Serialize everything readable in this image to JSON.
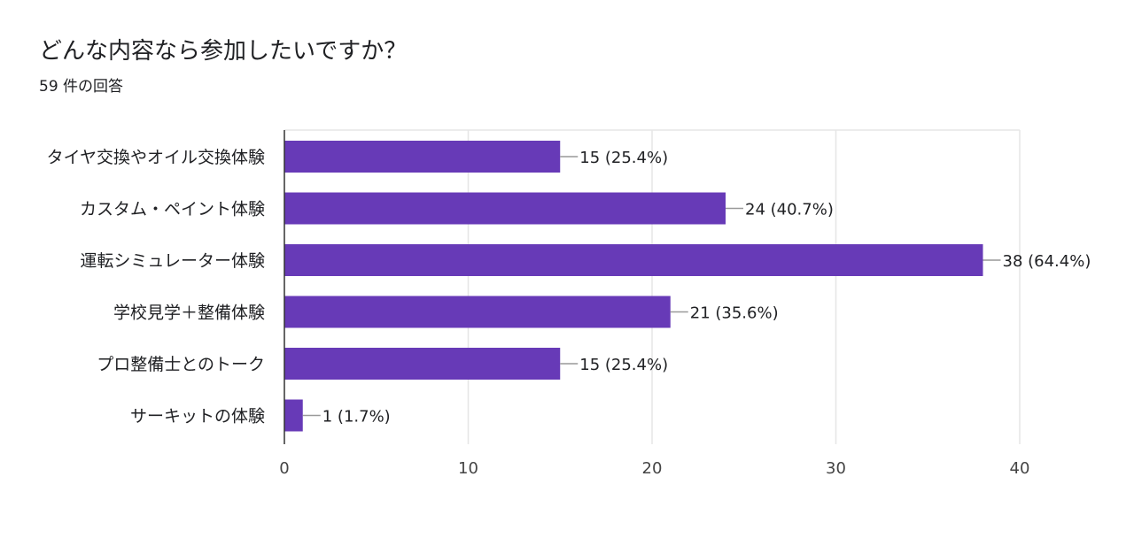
{
  "header": {
    "title": "どんな内容なら参加したいですか？",
    "subtitle": "59 件の回答"
  },
  "colors": {
    "bar": "#673ab7",
    "grid": "#e6e6e6",
    "axis": "#333333",
    "connector": "#999999"
  },
  "chart_data": {
    "type": "bar",
    "orientation": "horizontal",
    "title": "どんな内容なら参加したいですか？",
    "subtitle": "59 件の回答",
    "categories": [
      "タイヤ交換やオイル交換体験",
      "カスタム・ペイント体験",
      "運転シミュレーター体験",
      "学校見学＋整備体験",
      "プロ整備士とのトーク",
      "サーキットの体験"
    ],
    "values": [
      15,
      24,
      38,
      21,
      15,
      1
    ],
    "value_labels": [
      "15 (25.4%)",
      "24 (40.7%)",
      "38 (64.4%)",
      "21 (35.6%)",
      "15 (25.4%)",
      "1 (1.7%)"
    ],
    "xlim": [
      0,
      40
    ],
    "xticks": [
      "0",
      "10",
      "20",
      "30",
      "40"
    ],
    "grid": true,
    "legend": "none"
  }
}
